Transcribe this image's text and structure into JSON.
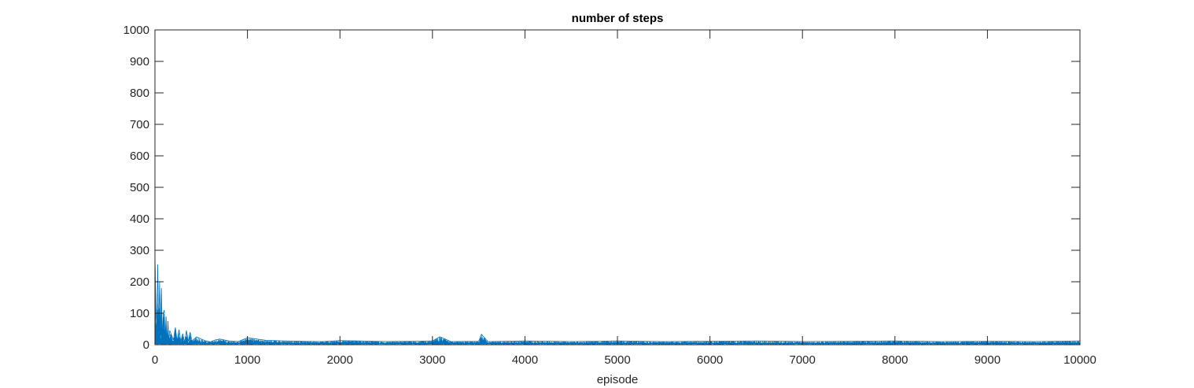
{
  "chart_data": {
    "type": "line",
    "title": "number of steps",
    "xlabel": "episode",
    "ylabel": "",
    "xlim": [
      0,
      10000
    ],
    "ylim": [
      0,
      1000
    ],
    "xticks": [
      0,
      1000,
      2000,
      3000,
      4000,
      5000,
      6000,
      7000,
      8000,
      9000,
      10000
    ],
    "yticks": [
      0,
      100,
      200,
      300,
      400,
      500,
      600,
      700,
      800,
      900,
      1000
    ],
    "xtick_labels": [
      "0",
      "1000",
      "2000",
      "3000",
      "4000",
      "5000",
      "6000",
      "7000",
      "8000",
      "9000",
      "10000"
    ],
    "ytick_labels": [
      "0",
      "100",
      "200",
      "300",
      "400",
      "500",
      "600",
      "700",
      "800",
      "900",
      "1000"
    ],
    "grid": false,
    "series": [
      {
        "color": "#0072BD",
        "x": [
          0,
          10,
          20,
          30,
          40,
          50,
          60,
          70,
          80,
          90,
          100,
          110,
          120,
          130,
          140,
          150,
          160,
          180,
          200,
          220,
          240,
          260,
          280,
          300,
          320,
          340,
          360,
          380,
          400,
          450,
          500,
          550,
          600,
          650,
          700,
          800,
          900,
          1000,
          1200,
          1400,
          1600,
          1800,
          2000,
          2200,
          2500,
          2800,
          3000,
          3080,
          3200,
          3500,
          3530,
          3600,
          4000,
          4300,
          4500,
          5000,
          5500,
          6000,
          6500,
          7000,
          7500,
          8000,
          8500,
          9000,
          9500,
          10000
        ],
        "y": [
          280,
          120,
          60,
          255,
          40,
          200,
          30,
          180,
          20,
          100,
          110,
          15,
          90,
          10,
          75,
          12,
          45,
          30,
          15,
          55,
          12,
          48,
          10,
          35,
          8,
          45,
          10,
          40,
          12,
          25,
          18,
          12,
          9,
          15,
          18,
          12,
          10,
          22,
          14,
          12,
          11,
          10,
          13,
          12,
          10,
          11,
          12,
          25,
          10,
          11,
          33,
          10,
          12,
          11,
          10,
          12,
          10,
          11,
          12,
          10,
          11,
          12,
          10,
          11,
          10,
          12
        ]
      }
    ]
  }
}
